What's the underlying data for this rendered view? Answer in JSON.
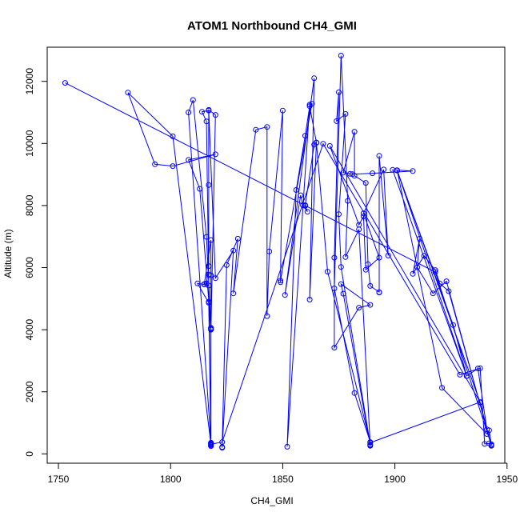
{
  "chart_data": {
    "type": "line",
    "title": "ATOM1 Northbound CH4_GMI",
    "xlabel": "CH4_GMI",
    "ylabel": "Altitude (m)",
    "xlim": [
      1745,
      1949
    ],
    "ylim": [
      -300,
      13100
    ],
    "x_ticks": [
      1750,
      1800,
      1850,
      1900,
      1950
    ],
    "y_ticks": [
      0,
      2000,
      4000,
      6000,
      8000,
      10000,
      12000
    ],
    "grid": false,
    "legend": "none",
    "markers": "open-circle",
    "color": "#0000ff",
    "series": [
      {
        "points": [
          [
            1753,
            11950
          ],
          [
            1918,
            5860
          ],
          [
            1943,
            280
          ],
          [
            1924,
            5240
          ],
          [
            1920,
            5490
          ],
          [
            1918,
            5920
          ],
          [
            1913,
            6380
          ],
          [
            1908,
            5800
          ],
          [
            1911,
            6930
          ],
          [
            1910,
            6010
          ],
          [
            1917,
            5170
          ],
          [
            1923,
            5560
          ],
          [
            1941,
            790
          ],
          [
            1937,
            2750
          ],
          [
            1932,
            2510
          ],
          [
            1926,
            4150
          ],
          [
            1901,
            9130
          ],
          [
            1932,
            2510
          ],
          [
            1899,
            9150
          ],
          [
            1908,
            9110
          ],
          [
            1890,
            9040
          ],
          [
            1881,
            9010
          ],
          [
            1880,
            9020
          ],
          [
            1877,
            9060
          ],
          [
            1882,
            10380
          ],
          [
            1882,
            8960
          ],
          [
            1887,
            8730
          ],
          [
            1888,
            6110
          ],
          [
            1889,
            5410
          ],
          [
            1893,
            5210
          ],
          [
            1893,
            5200
          ],
          [
            1893,
            9600
          ],
          [
            1897,
            6390
          ],
          [
            1895,
            9160
          ],
          [
            1886,
            7750
          ],
          [
            1893,
            6320
          ],
          [
            1887,
            5930
          ],
          [
            1886,
            7650
          ],
          [
            1884,
            7380
          ],
          [
            1871,
            9920
          ],
          [
            1938,
            1670
          ],
          [
            1889,
            360
          ],
          [
            1889,
            300
          ],
          [
            1876,
            6020
          ],
          [
            1875,
            7720
          ],
          [
            1878,
            10950
          ],
          [
            1874,
            10720
          ],
          [
            1875,
            11650
          ],
          [
            1873,
            6320
          ],
          [
            1873,
            3420
          ],
          [
            1884,
            4710
          ],
          [
            1889,
            4800
          ],
          [
            1876,
            5470
          ],
          [
            1877,
            5160
          ],
          [
            1889,
            280
          ],
          [
            1889,
            260
          ],
          [
            1884,
            7230
          ],
          [
            1878,
            6340
          ],
          [
            1879,
            8150
          ],
          [
            1876,
            12830
          ],
          [
            1873,
            5330
          ],
          [
            1882,
            1960
          ],
          [
            1889,
            380
          ],
          [
            1870,
            5870
          ],
          [
            1865,
            10020
          ],
          [
            1862,
            4970
          ],
          [
            1864,
            12100
          ],
          [
            1851,
            5120
          ],
          [
            1858,
            8330
          ],
          [
            1859,
            8010
          ],
          [
            1861,
            7800
          ],
          [
            1860,
            7990
          ],
          [
            1860,
            8010
          ],
          [
            1864,
            9960
          ],
          [
            1865,
            10030
          ],
          [
            1862,
            11200
          ],
          [
            1860,
            10250
          ],
          [
            1856,
            8500
          ],
          [
            1852,
            230
          ],
          [
            1862,
            11250
          ],
          [
            1863,
            11280
          ],
          [
            1849,
            5580
          ],
          [
            1849,
            5530
          ],
          [
            1850,
            11060
          ],
          [
            1844,
            6520
          ],
          [
            1843,
            4440
          ],
          [
            1843,
            10530
          ],
          [
            1838,
            10440
          ],
          [
            1828,
            5170
          ],
          [
            1830,
            6930
          ],
          [
            1825,
            6080
          ],
          [
            1823,
            220
          ],
          [
            1823,
            200
          ],
          [
            1828,
            6550
          ],
          [
            1820,
            5660
          ],
          [
            1817,
            11080
          ],
          [
            1820,
            10920
          ],
          [
            1818,
            4000
          ],
          [
            1817,
            4870
          ],
          [
            1812,
            5490
          ],
          [
            1815,
            5460
          ],
          [
            1818,
            6890
          ],
          [
            1818,
            5750
          ],
          [
            1818,
            4020
          ],
          [
            1818,
            280
          ],
          [
            1818,
            250
          ],
          [
            1818,
            360
          ],
          [
            1818,
            4060
          ],
          [
            1816,
            6990
          ],
          [
            1810,
            11400
          ],
          [
            1808,
            11000
          ],
          [
            1818,
            340
          ],
          [
            1817,
            5780
          ],
          [
            1817,
            5420
          ],
          [
            1815,
            5470
          ],
          [
            1816,
            5490
          ],
          [
            1817,
            6050
          ],
          [
            1817,
            8660
          ],
          [
            1817,
            11060
          ],
          [
            1814,
            11020
          ],
          [
            1816,
            10710
          ],
          [
            1818,
            290
          ],
          [
            1817,
            4900
          ],
          [
            1818,
            4050
          ],
          [
            1813,
            8540
          ],
          [
            1808,
            9470
          ],
          [
            1820,
            9650
          ],
          [
            1801,
            9270
          ],
          [
            1793,
            9330
          ],
          [
            1781,
            11640
          ],
          [
            1801,
            10230
          ],
          [
            1818,
            310
          ],
          [
            1823,
            380
          ],
          [
            1868,
            9990
          ],
          [
            1929,
            2550
          ],
          [
            1938,
            2760
          ],
          [
            1940,
            320
          ],
          [
            1942,
            340
          ],
          [
            1943,
            310
          ],
          [
            1942,
            760
          ],
          [
            1941,
            640
          ],
          [
            1921,
            2130
          ],
          [
            1901,
            9140
          ],
          [
            1938,
            1650
          ],
          [
            1943,
            260
          ]
        ]
      }
    ]
  }
}
